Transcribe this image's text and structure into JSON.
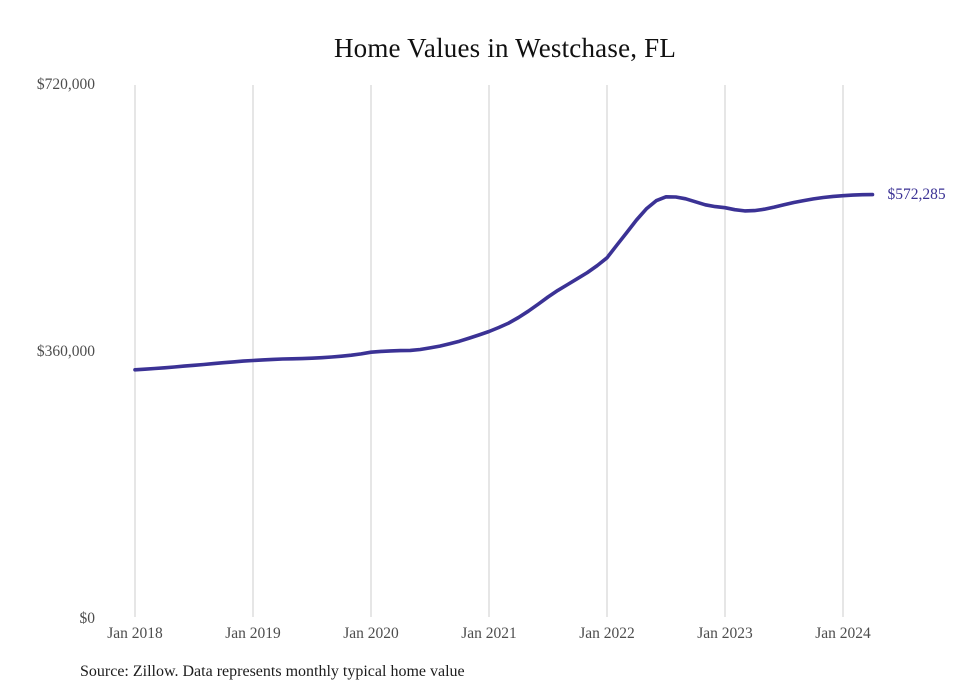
{
  "page": {
    "title": "Home Values in Westchase, FL",
    "source_note": "Source: Zillow. Data represents monthly typical home value"
  },
  "chart_data": {
    "type": "line",
    "title": "Home Values in Westchase, FL",
    "series_name": "Monthly typical home value",
    "x": [
      "2018-01",
      "2018-02",
      "2018-03",
      "2018-04",
      "2018-05",
      "2018-06",
      "2018-07",
      "2018-08",
      "2018-09",
      "2018-10",
      "2018-11",
      "2018-12",
      "2019-01",
      "2019-02",
      "2019-03",
      "2019-04",
      "2019-05",
      "2019-06",
      "2019-07",
      "2019-08",
      "2019-09",
      "2019-10",
      "2019-11",
      "2019-12",
      "2020-01",
      "2020-02",
      "2020-03",
      "2020-04",
      "2020-05",
      "2020-06",
      "2020-07",
      "2020-08",
      "2020-09",
      "2020-10",
      "2020-11",
      "2020-12",
      "2021-01",
      "2021-02",
      "2021-03",
      "2021-04",
      "2021-05",
      "2021-06",
      "2021-07",
      "2021-08",
      "2021-09",
      "2021-10",
      "2021-11",
      "2021-12",
      "2022-01",
      "2022-02",
      "2022-03",
      "2022-04",
      "2022-05",
      "2022-06",
      "2022-07",
      "2022-08",
      "2022-09",
      "2022-10",
      "2022-11",
      "2022-12",
      "2023-01",
      "2023-02",
      "2023-03",
      "2023-04",
      "2023-05",
      "2023-06",
      "2023-07",
      "2023-08",
      "2023-09",
      "2023-10",
      "2023-11",
      "2023-12",
      "2024-01",
      "2024-02",
      "2024-03",
      "2024-04"
    ],
    "values": [
      336000,
      336800,
      337700,
      338700,
      339800,
      341000,
      342100,
      343200,
      344400,
      345600,
      346700,
      347700,
      348600,
      349400,
      350000,
      350500,
      350800,
      351100,
      351600,
      352300,
      353200,
      354300,
      355700,
      357500,
      359700,
      360800,
      361500,
      361900,
      362100,
      363400,
      365500,
      368000,
      371000,
      374500,
      378700,
      383000,
      387600,
      393000,
      399000,
      406500,
      415000,
      424500,
      434200,
      443000,
      451000,
      459000,
      467000,
      476500,
      487000,
      504000,
      521000,
      538000,
      553000,
      564000,
      569200,
      569000,
      566500,
      562500,
      558500,
      556000,
      554500,
      551800,
      550200,
      550700,
      552600,
      555400,
      558600,
      561600,
      564200,
      566400,
      568300,
      569800,
      570800,
      571600,
      572100,
      572285
    ],
    "latest_value": 572285,
    "end_label": "$572,285",
    "ylim": [
      0,
      720000
    ],
    "y_ticks": [
      {
        "value": 720000,
        "label": "$720,000"
      },
      {
        "value": 360000,
        "label": "$360,000"
      },
      {
        "value": 0,
        "label": "$0"
      }
    ],
    "x_ticks": [
      {
        "month_index": 0,
        "label": "Jan 2018"
      },
      {
        "month_index": 12,
        "label": "Jan 2019"
      },
      {
        "month_index": 24,
        "label": "Jan 2020"
      },
      {
        "month_index": 36,
        "label": "Jan 2021"
      },
      {
        "month_index": 48,
        "label": "Jan 2022"
      },
      {
        "month_index": 60,
        "label": "Jan 2023"
      },
      {
        "month_index": 72,
        "label": "Jan 2024"
      }
    ],
    "grid": "vertical-only",
    "legend": "none",
    "colors": {
      "line": "#3b3295",
      "grid": "#cccccc",
      "tick_text": "#4d4d4d",
      "title_text": "#111111",
      "end_label_text": "#3b3295",
      "background": "#ffffff"
    }
  }
}
